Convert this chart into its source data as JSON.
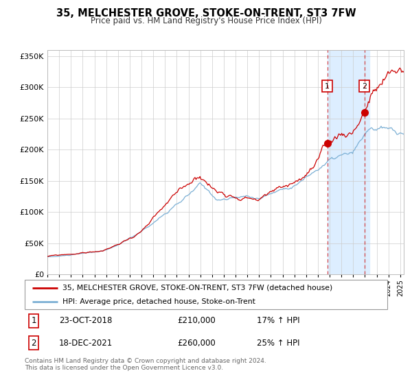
{
  "title": "35, MELCHESTER GROVE, STOKE-ON-TRENT, ST3 7FW",
  "subtitle": "Price paid vs. HM Land Registry's House Price Index (HPI)",
  "legend_line1": "35, MELCHESTER GROVE, STOKE-ON-TRENT, ST3 7FW (detached house)",
  "legend_line2": "HPI: Average price, detached house, Stoke-on-Trent",
  "sale1_date": "23-OCT-2018",
  "sale1_price": "£210,000",
  "sale1_hpi": "17% ↑ HPI",
  "sale1_year": 2018.8,
  "sale1_value": 210000,
  "sale2_date": "18-DEC-2021",
  "sale2_price": "£260,000",
  "sale2_hpi": "25% ↑ HPI",
  "sale2_year": 2021.96,
  "sale2_value": 260000,
  "red_color": "#cc0000",
  "blue_color": "#7bafd4",
  "shade_color": "#ddeeff",
  "grid_color": "#cccccc",
  "ylim": [
    0,
    360000
  ],
  "xlim_start": 1995.0,
  "xlim_end": 2025.3,
  "footer": "Contains HM Land Registry data © Crown copyright and database right 2024.\nThis data is licensed under the Open Government Licence v3.0."
}
